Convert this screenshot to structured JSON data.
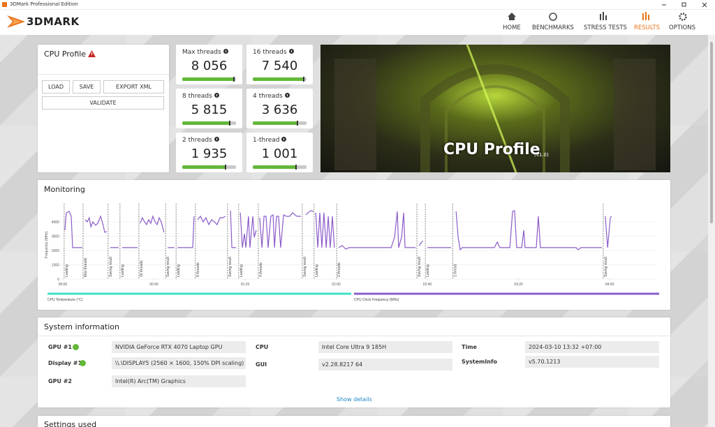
{
  "window": {
    "title": "3DMark Professional Edition"
  },
  "header": {
    "logo": "3DMARK",
    "nav": [
      "HOME",
      "BENCHMARKS",
      "STRESS TESTS",
      "RESULTS",
      "OPTIONS"
    ]
  },
  "profile": {
    "title": "CPU Profile",
    "buttons": [
      "LOAD",
      "SAVE",
      "EXPORT XML"
    ],
    "validate": "VALIDATE"
  },
  "scores": [
    {
      "label": "Max threads",
      "value": "8 056"
    },
    {
      "label": "16 threads",
      "value": "7 540"
    },
    {
      "label": "8 threads",
      "value": "5 815"
    },
    {
      "label": "4 threads",
      "value": "3 636"
    },
    {
      "label": "2 threads",
      "value": "1 935"
    },
    {
      "label": "1-thread",
      "value": "1 001"
    }
  ],
  "banner": {
    "title": "CPU Profile",
    "version": "(v1.0)"
  },
  "monitoring": {
    "title": "Monitoring"
  },
  "chart_data": {
    "type": "line",
    "y_label": "Frequency (MHz)",
    "x": [
      0.9,
      1.5,
      2.8,
      3.7,
      4.3,
      8.6,
      9.2,
      9.8,
      10.7,
      11.6,
      12.3,
      13.2,
      14.4,
      15.3,
      16.6,
      17.5,
      18.4,
      19.3,
      20.0,
      20.8,
      24.5,
      25.3,
      26.1,
      32.8,
      33.4,
      34.0,
      34.9,
      35.9,
      36.8,
      37.7,
      38.6,
      39.5,
      40.5,
      41.4,
      42.3,
      43.2,
      44.4,
      45.2,
      46.0,
      49.0,
      49.6,
      50.3,
      57.0,
      57.6,
      58.4,
      59.2,
      60.4,
      61.6,
      62.8,
      64.1,
      65.3,
      66.5,
      67.7,
      69.0,
      70.2,
      71.4,
      72.5,
      73.6,
      74.2,
      76.0,
      77.0,
      77.9,
      78.8,
      79.7,
      80.3,
      81.5,
      82.1,
      83.4,
      84.0,
      84.9,
      85.6,
      86.4,
      87.4,
      88.3,
      89.2,
      90.1,
      91.3,
      92.3,
      92.9,
      93.8,
      94.7,
      95.6,
      96.9,
      98.1,
      99.6,
      100.8,
      102.7,
      104.5,
      105.6,
      106.7,
      107.6,
      108.8,
      110.0,
      110.5,
      111.0,
      111.9,
      112.8,
      113.7,
      114.6,
      115.6,
      116.5,
      117.4,
      118.3,
      119.2,
      120.2,
      121.1,
      122.6,
      124.2,
      125.7,
      144.1,
      145.6,
      146.8,
      147.4,
      148.7,
      149.6,
      150.2,
      154.8,
      155.5,
      156.3,
      158.0,
      159.0,
      160.0,
      170.4,
      171.5,
      172.6,
      173.5,
      174.4,
      175.3,
      189.4,
      190.7,
      191.8,
      196.2,
      197.4,
      198.3,
      199.2,
      201.4,
      202.3,
      202.9,
      207.8,
      208.7,
      209.6,
      225.3,
      226.2,
      227.4,
      236.6,
      237.4,
      238.1,
      239.1,
      240.3,
      240.9
    ],
    "series": [
      {
        "color": "#8b5cc9",
        "values": [
          3420,
          4640,
          4730,
          4390,
          2200,
          2200,
          null,
          4150,
          4000,
          4290,
          3660,
          4000,
          3760,
          3900,
          4390,
          3900,
          3270,
          3320,
          null,
          2200,
          2200,
          null,
          2200,
          2200,
          null,
          3900,
          4290,
          4000,
          3810,
          4150,
          3900,
          4390,
          4000,
          3810,
          4290,
          4000,
          3270,
          null,
          2200,
          2200,
          null,
          2200,
          2200,
          4390,
          null,
          4150,
          4390,
          4000,
          4290,
          3810,
          4150,
          4000,
          3810,
          4290,
          4290,
          4390,
          null,
          4780,
          2200,
          2200,
          null,
          4640,
          2200,
          3170,
          2200,
          4390,
          2200,
          4390,
          2930,
          3420,
          null,
          4290,
          2200,
          4390,
          4390,
          2200,
          4390,
          4490,
          2200,
          4390,
          4390,
          2200,
          4490,
          4390,
          4390,
          4640,
          4390,
          4390,
          null,
          4490,
          4640,
          4780,
          4730,
          null,
          4640,
          2200,
          4640,
          2200,
          4640,
          2200,
          4390,
          2200,
          4390,
          2200,
          null,
          2200,
          2340,
          2100,
          2200,
          2200,
          2930,
          4730,
          2200,
          2930,
          4640,
          2200,
          2200,
          null,
          2340,
          2680,
          null,
          2200,
          2200,
          null,
          4730,
          2930,
          2050,
          2200,
          2200,
          2590,
          2200,
          2200,
          4730,
          4780,
          2200,
          2200,
          3420,
          2200,
          2200,
          4390,
          2200,
          2200,
          2050,
          2200,
          2200,
          null,
          4390,
          2200,
          4290,
          4390
        ]
      }
    ],
    "legend": [
      {
        "name": "CPU Temperature (°C)",
        "color": "#3fe0c5"
      },
      {
        "name": "CPU Clock Frequency (MHz)",
        "color": "#8b5cc9"
      }
    ],
    "markers": [
      {
        "x": 0.6,
        "label": "Loading"
      },
      {
        "x": 8.9,
        "label": "Max threads"
      },
      {
        "x": 19.9,
        "label": "Saving result"
      },
      {
        "x": 25.1,
        "label": "Loading"
      },
      {
        "x": 33.4,
        "label": "16 threads"
      },
      {
        "x": 45.1,
        "label": "Saving result"
      },
      {
        "x": 49.7,
        "label": "Loading"
      },
      {
        "x": 58.2,
        "label": "8 threads"
      },
      {
        "x": 72.3,
        "label": "Saving result"
      },
      {
        "x": 77.2,
        "label": "Loading"
      },
      {
        "x": 85.8,
        "label": "4 threads"
      },
      {
        "x": 105.1,
        "label": "Saving result"
      },
      {
        "x": 110.3,
        "label": "Loading"
      },
      {
        "x": 120.2,
        "label": "2 threads"
      },
      {
        "x": 155.4,
        "label": "Saving result"
      },
      {
        "x": 159.1,
        "label": "Loading"
      },
      {
        "x": 171.1,
        "label": "1 thread"
      },
      {
        "x": 237.2,
        "label": "Saving result"
      }
    ],
    "xlim": [
      -0.6,
      260.5
    ],
    "ylim": [
      0,
      4800
    ],
    "xticks": [
      {
        "value": 0,
        "label": "00:00"
      },
      {
        "value": 40,
        "label": "00:40"
      },
      {
        "value": 80,
        "label": "01:20"
      },
      {
        "value": 120,
        "label": "02:00"
      },
      {
        "value": 160,
        "label": "02:40"
      },
      {
        "value": 200,
        "label": "03:20"
      },
      {
        "value": 240,
        "label": "04:00"
      }
    ],
    "yticks": [
      0,
      1000,
      2000,
      3000,
      4000
    ],
    "grid": true
  },
  "system": {
    "title": "System information",
    "rows": [
      {
        "label": "GPU #1",
        "value": "NVIDIA GeForce RTX 4070 Laptop GPU"
      },
      {
        "label": "Display #1",
        "value": "\\\\.\\DISPLAY5 (2560 × 1600, 150% DPI scaling)"
      },
      {
        "label": "GPU #2",
        "value": "Intel(R) Arc(TM) Graphics"
      },
      {
        "label": "CPU",
        "value": "Intel Core Ultra 9 185H"
      },
      {
        "label": "GUI",
        "value": "v2.28.8217 64"
      },
      {
        "label": "Time",
        "value": "2024-03-10 13:32 +07:00"
      },
      {
        "label": "SystemInfo",
        "value": "v5.70.1213"
      }
    ],
    "details": "Show details"
  },
  "settings": {
    "title": "Settings used"
  }
}
